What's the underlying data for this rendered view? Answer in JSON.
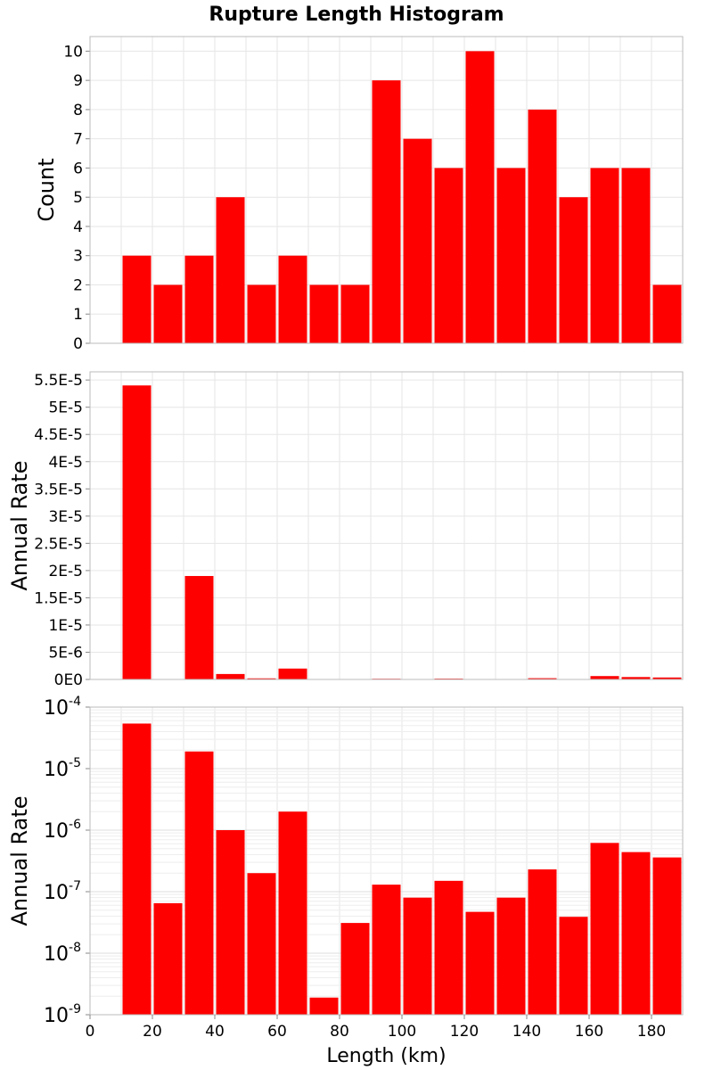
{
  "chart_data": [
    {
      "type": "bar",
      "title": "Rupture Length Histogram",
      "ylabel": "Count",
      "xlim": [
        0,
        190
      ],
      "ylim": [
        0,
        10.5
      ],
      "bin_width": 10,
      "bin_centers": [
        15,
        25,
        35,
        45,
        55,
        65,
        75,
        85,
        95,
        105,
        115,
        125,
        135,
        145,
        155,
        165,
        175,
        185
      ],
      "values": [
        3,
        2,
        3,
        5,
        2,
        3,
        2,
        2,
        9,
        7,
        6,
        10,
        6,
        8,
        5,
        6,
        6,
        2
      ],
      "yticks": [
        0,
        1,
        2,
        3,
        4,
        5,
        6,
        7,
        8,
        9,
        10
      ],
      "ytick_labels": [
        "0",
        "1",
        "2",
        "3",
        "4",
        "5",
        "6",
        "7",
        "8",
        "9",
        "10"
      ],
      "bar_color": "#ff0000",
      "grid": true
    },
    {
      "type": "bar",
      "ylabel": "Annual Rate",
      "xlim": [
        0,
        190
      ],
      "ylim": [
        0,
        5.65e-05
      ],
      "bin_width": 10,
      "bin_centers": [
        15,
        25,
        35,
        45,
        55,
        65,
        75,
        85,
        95,
        105,
        115,
        125,
        135,
        145,
        155,
        165,
        175,
        185
      ],
      "values": [
        5.4e-05,
        6.5e-08,
        1.9e-05,
        1e-06,
        2e-07,
        2e-06,
        1.9e-09,
        3.1e-08,
        1.3e-07,
        8e-08,
        1.5e-07,
        4.7e-08,
        8e-08,
        2.3e-07,
        3.9e-08,
        6.2e-07,
        4.4e-07,
        3.6e-07
      ],
      "yticks": [
        0,
        5e-06,
        1e-05,
        1.5e-05,
        2e-05,
        2.5e-05,
        3e-05,
        3.5e-05,
        4e-05,
        4.5e-05,
        5e-05,
        5.5e-05
      ],
      "ytick_labels": [
        "0E0",
        "5E-6",
        "1E-5",
        "1.5E-5",
        "2E-5",
        "2.5E-5",
        "3E-5",
        "3.5E-5",
        "4E-5",
        "4.5E-5",
        "5E-5",
        "5.5E-5"
      ],
      "bar_color": "#ff0000",
      "grid": true
    },
    {
      "type": "bar",
      "ylabel": "Annual Rate",
      "xlabel": "Length (km)",
      "yscale": "log",
      "xlim": [
        0,
        190
      ],
      "ylim": [
        1e-09,
        0.0001
      ],
      "bin_width": 10,
      "bin_centers": [
        15,
        25,
        35,
        45,
        55,
        65,
        75,
        85,
        95,
        105,
        115,
        125,
        135,
        145,
        155,
        165,
        175,
        185
      ],
      "values": [
        5.4e-05,
        6.5e-08,
        1.9e-05,
        1e-06,
        2e-07,
        2e-06,
        1.9e-09,
        3.1e-08,
        1.3e-07,
        8e-08,
        1.5e-07,
        4.7e-08,
        8e-08,
        2.3e-07,
        3.9e-08,
        6.2e-07,
        4.4e-07,
        3.6e-07
      ],
      "ytick_exponents": [
        "-9",
        "-8",
        "-7",
        "-6",
        "-5",
        "-4"
      ],
      "ytick_base": "10",
      "xticks": [
        0,
        20,
        40,
        60,
        80,
        100,
        120,
        140,
        160,
        180
      ],
      "xtick_labels": [
        "0",
        "20",
        "40",
        "60",
        "80",
        "100",
        "120",
        "140",
        "160",
        "180"
      ],
      "bar_color": "#ff0000",
      "grid": true
    }
  ]
}
